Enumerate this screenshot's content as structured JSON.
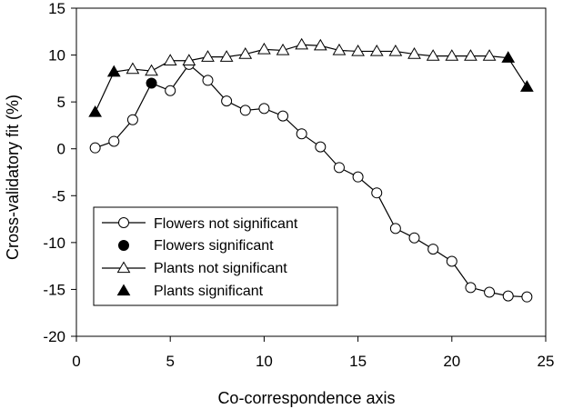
{
  "chart_data": {
    "type": "line",
    "xlabel": "Co-correspondence axis",
    "ylabel": "Cross-validatory fit (%)",
    "xlim": [
      0,
      25
    ],
    "ylim": [
      -20,
      15
    ],
    "xticks": [
      0,
      5,
      10,
      15,
      20,
      25
    ],
    "yticks": [
      -20,
      -15,
      -10,
      -5,
      0,
      5,
      10,
      15
    ],
    "grid": false,
    "legend_position": "bottom-left",
    "legend": [
      "Flowers not significant",
      "Flowers significant",
      "Plants not significant",
      "Plants significant"
    ],
    "series": [
      {
        "group": "Flowers",
        "marker": "circle",
        "x": [
          1,
          2,
          3,
          4,
          5,
          6,
          7,
          8,
          9,
          10,
          11,
          12,
          13,
          14,
          15,
          16,
          17,
          18,
          19,
          20,
          21,
          22,
          23,
          24
        ],
        "y": [
          0.1,
          0.8,
          3.1,
          7.0,
          6.2,
          9.0,
          7.3,
          5.1,
          4.1,
          4.3,
          3.5,
          1.6,
          0.2,
          -2.0,
          -3.0,
          -4.7,
          -8.5,
          -9.5,
          -10.7,
          -12.0,
          -14.8,
          -15.3,
          -15.7,
          -15.8
        ],
        "significant": [
          false,
          false,
          false,
          true,
          false,
          false,
          false,
          false,
          false,
          false,
          false,
          false,
          false,
          false,
          false,
          false,
          false,
          false,
          false,
          false,
          false,
          false,
          false,
          false
        ]
      },
      {
        "group": "Plants",
        "marker": "triangle",
        "x": [
          1,
          2,
          3,
          4,
          5,
          6,
          7,
          8,
          9,
          10,
          11,
          12,
          13,
          14,
          15,
          16,
          17,
          18,
          19,
          20,
          21,
          22,
          23,
          24
        ],
        "y": [
          3.9,
          8.2,
          8.5,
          8.3,
          9.4,
          9.4,
          9.8,
          9.8,
          10.1,
          10.6,
          10.5,
          11.1,
          11.0,
          10.5,
          10.4,
          10.4,
          10.4,
          10.1,
          9.9,
          9.9,
          9.9,
          9.9,
          9.7,
          6.6
        ],
        "significant": [
          true,
          true,
          false,
          false,
          false,
          false,
          false,
          false,
          false,
          false,
          false,
          false,
          false,
          false,
          false,
          false,
          false,
          false,
          false,
          false,
          false,
          false,
          true,
          true
        ]
      }
    ]
  }
}
